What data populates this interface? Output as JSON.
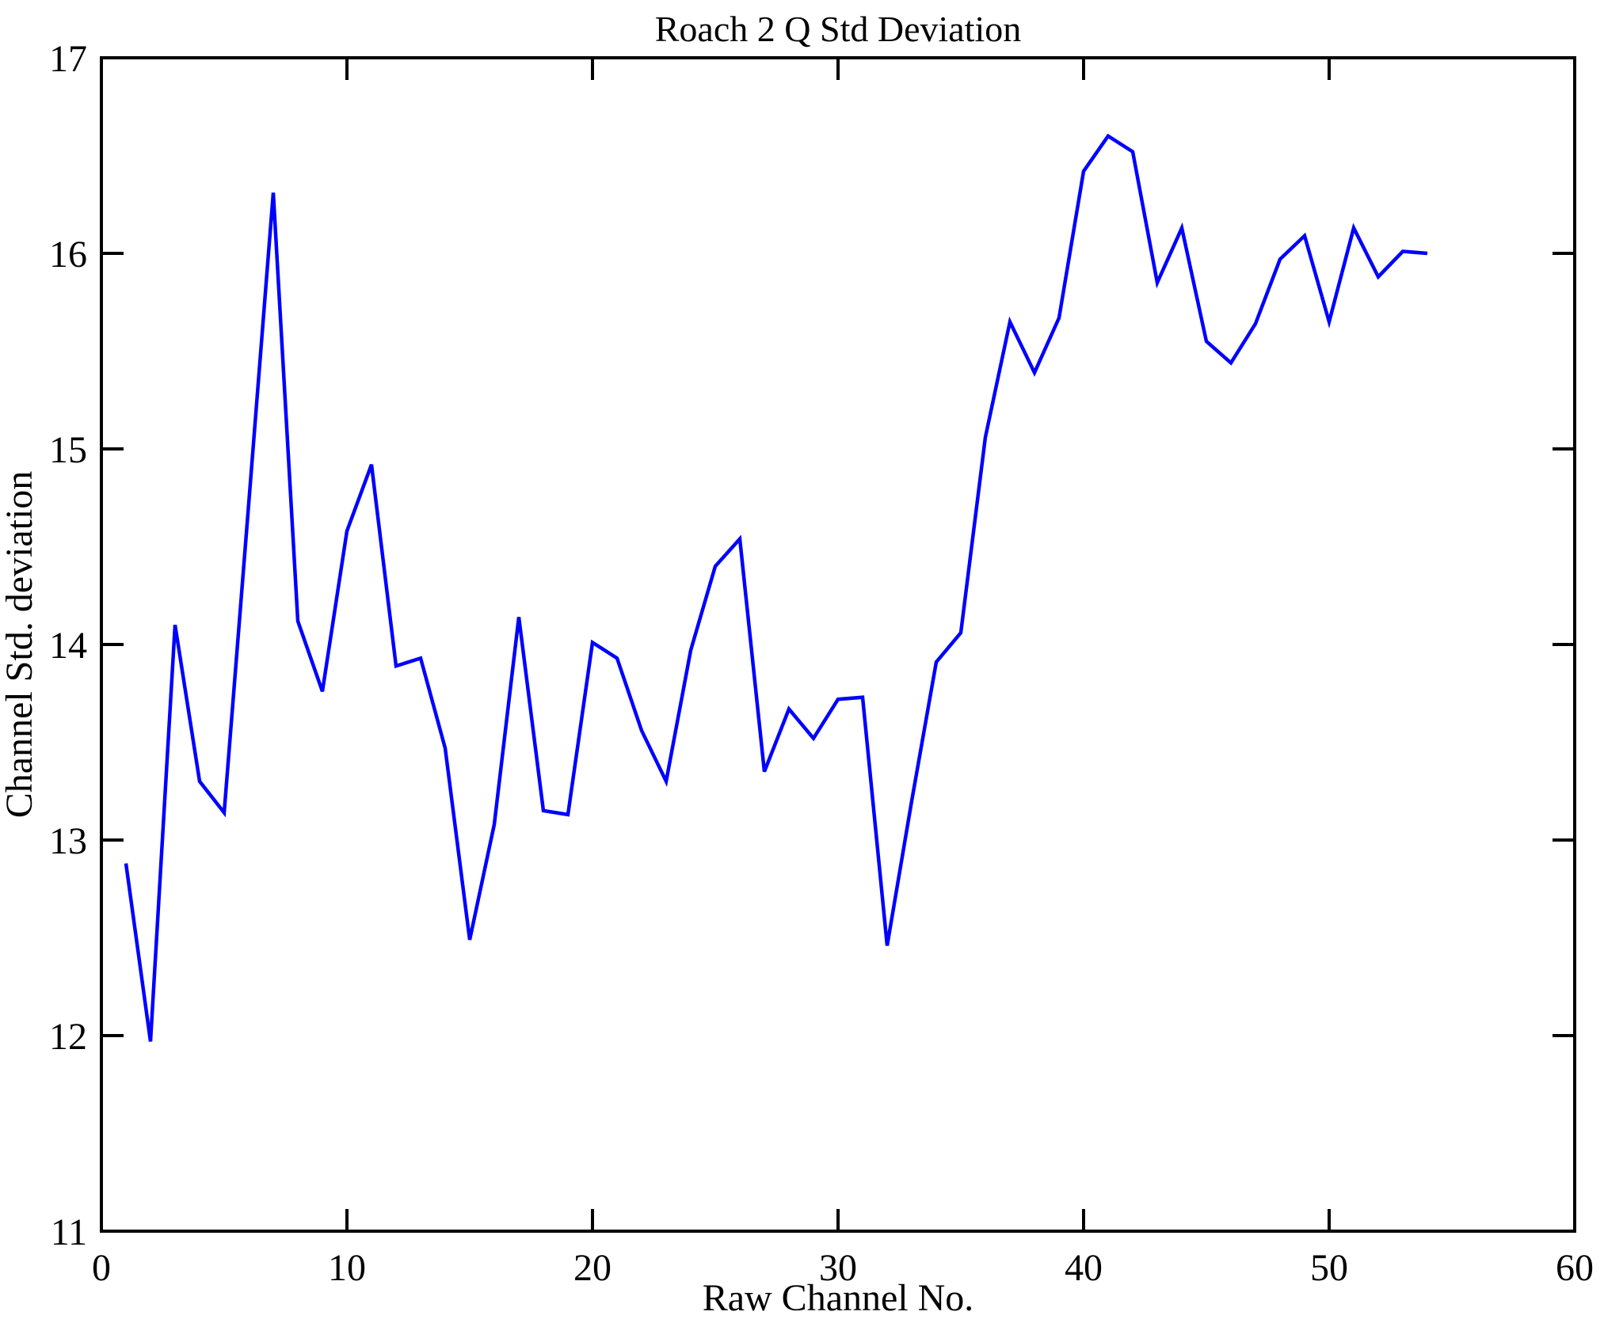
{
  "page": {
    "background_color": "#ffffff",
    "axis_color": "#000000",
    "plot_bg_color": "#ffffff"
  },
  "chart_data": {
    "type": "line",
    "title": "Roach 2 Q Std Deviation",
    "xlabel": "Raw Channel No.",
    "ylabel": "Channel Std. deviation",
    "xlim": [
      0,
      60
    ],
    "ylim": [
      11,
      17
    ],
    "x_ticks": [
      0,
      10,
      20,
      30,
      40,
      50,
      60
    ],
    "y_ticks": [
      11,
      12,
      13,
      14,
      15,
      16,
      17
    ],
    "grid": false,
    "legend_position": "none",
    "line_color": "#0000FF",
    "series": [
      {
        "name": "Channel Std. deviation vs Raw Channel No.",
        "x": [
          1,
          2,
          3,
          4,
          5,
          6,
          7,
          8,
          9,
          10,
          11,
          12,
          13,
          14,
          15,
          16,
          17,
          18,
          19,
          20,
          21,
          22,
          23,
          24,
          25,
          26,
          27,
          28,
          29,
          30,
          31,
          32,
          33,
          34,
          35,
          36,
          37,
          38,
          39,
          40,
          41,
          42,
          43,
          44,
          45,
          46,
          47,
          48,
          49,
          50,
          51,
          52,
          53,
          54
        ],
        "y": [
          12.88,
          11.97,
          14.1,
          13.3,
          13.14,
          14.72,
          16.31,
          14.12,
          13.76,
          14.58,
          14.92,
          13.89,
          13.93,
          13.47,
          12.49,
          13.08,
          14.14,
          13.15,
          13.13,
          14.01,
          13.93,
          13.56,
          13.3,
          13.97,
          14.4,
          14.54,
          13.35,
          13.67,
          13.52,
          13.72,
          13.73,
          12.46,
          13.2,
          13.91,
          14.06,
          15.06,
          15.65,
          15.39,
          15.67,
          16.42,
          16.6,
          16.52,
          15.85,
          16.13,
          15.55,
          15.44,
          15.64,
          15.97,
          16.09,
          15.65,
          16.13,
          15.88,
          16.01,
          16.0
        ]
      }
    ]
  }
}
